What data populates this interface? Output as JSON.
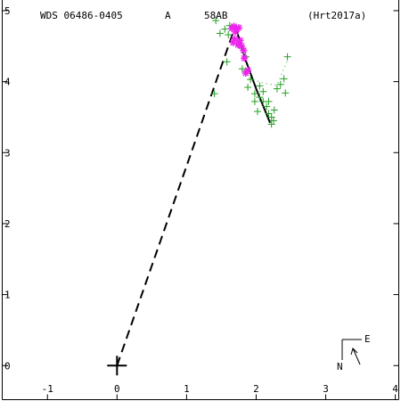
{
  "header": {
    "wds_id": "WDS 06486-0405",
    "component_flag": "A",
    "discoverer": "58AB",
    "reference": "(Hrt2017a)"
  },
  "compass": {
    "east_label": "E",
    "north_label": "N"
  },
  "chart_data": {
    "type": "scatter",
    "title": "",
    "xlabel": "",
    "ylabel": "",
    "xlim": [
      -1.65,
      4.05
    ],
    "ylim": [
      -0.48,
      5.15
    ],
    "x_tick_labels": [
      "-1",
      "0",
      "1",
      "2",
      "3",
      "4"
    ],
    "x_ticks": [
      -1,
      0,
      1,
      2,
      3,
      4
    ],
    "y_tick_labels": [
      "0",
      "1",
      "2",
      "3",
      "4",
      "5"
    ],
    "y_ticks": [
      0,
      1,
      2,
      3,
      4,
      5
    ],
    "grid": false,
    "colors": {
      "historical": "#22a022",
      "speckle": "#ee22ee",
      "orbit": "#000000",
      "frame": "#000000"
    },
    "primary": {
      "x": 0,
      "y": 0
    },
    "periastron_line": {
      "from": [
        0,
        0
      ],
      "to": [
        1.7,
        4.78
      ]
    },
    "orbit_arc": [
      [
        1.7,
        4.78
      ],
      [
        1.85,
        4.3
      ],
      [
        2.0,
        3.9
      ],
      [
        2.2,
        3.42
      ]
    ],
    "dotted_projection": [
      [
        1.9,
        4.05
      ],
      [
        2.1,
        3.98
      ],
      [
        2.3,
        3.95
      ],
      [
        2.45,
        4.3
      ]
    ],
    "series": [
      {
        "marker": "plus",
        "points": [
          [
            1.42,
            4.86
          ],
          [
            1.48,
            4.68
          ],
          [
            1.55,
            4.74
          ],
          [
            1.6,
            4.66
          ],
          [
            1.62,
            4.79
          ],
          [
            1.72,
            4.55
          ],
          [
            1.78,
            4.48
          ],
          [
            1.85,
            4.35
          ],
          [
            1.8,
            4.18
          ],
          [
            1.92,
            4.03
          ],
          [
            1.88,
            3.92
          ],
          [
            1.98,
            3.83
          ],
          [
            2.05,
            3.78
          ],
          [
            2.1,
            3.72
          ],
          [
            2.15,
            3.65
          ],
          [
            2.18,
            3.55
          ],
          [
            2.22,
            3.5
          ],
          [
            2.25,
            3.45
          ],
          [
            2.3,
            3.9
          ],
          [
            2.35,
            3.96
          ],
          [
            2.4,
            4.04
          ],
          [
            2.42,
            3.84
          ],
          [
            2.45,
            4.35
          ],
          [
            1.98,
            3.72
          ],
          [
            2.22,
            3.4
          ],
          [
            1.4,
            3.83
          ],
          [
            1.58,
            4.28
          ],
          [
            2.05,
            3.94
          ],
          [
            2.1,
            3.86
          ],
          [
            2.26,
            3.6
          ],
          [
            2.18,
            3.72
          ],
          [
            2.02,
            3.58
          ]
        ]
      },
      {
        "marker": "asterisk",
        "points": [
          [
            1.65,
            4.75
          ],
          [
            1.68,
            4.78
          ],
          [
            1.72,
            4.74
          ],
          [
            1.7,
            4.7
          ],
          [
            1.75,
            4.76
          ],
          [
            1.67,
            4.55
          ],
          [
            1.74,
            4.52
          ],
          [
            1.79,
            4.5
          ],
          [
            1.82,
            4.44
          ],
          [
            1.83,
            4.33
          ],
          [
            1.85,
            4.12
          ],
          [
            1.88,
            4.16
          ],
          [
            1.77,
            4.58
          ],
          [
            1.69,
            4.6
          ]
        ]
      }
    ]
  }
}
